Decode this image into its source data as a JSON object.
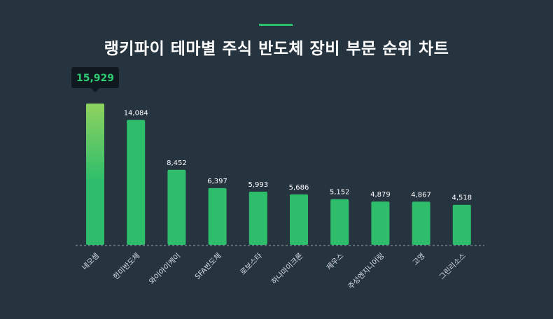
{
  "title": "랭키파이 테마별 주식 반도체 장비 부문 순위 차트",
  "colors": {
    "background": "#263440",
    "accent": "#2ebd6b",
    "bar": "#2ebd6b",
    "bar_top_highlight": "#8fd35f",
    "tooltip_bg": "#101820",
    "tooltip_text": "#2ecc71",
    "baseline": "#9aa5ae"
  },
  "chart_data": {
    "type": "bar",
    "title": "랭키파이 테마별 주식 반도체 장비 부문 순위 차트",
    "categories": [
      "네오셈",
      "한미반도체",
      "와이아이케이",
      "SFA반도체",
      "로보스타",
      "하나마이크론",
      "제우스",
      "주성엔지니어링",
      "고영",
      "그린리소스"
    ],
    "values": [
      15929,
      14084,
      8452,
      6397,
      5993,
      5686,
      5152,
      4879,
      4867,
      4518
    ],
    "value_labels": [
      "15,929",
      "14,084",
      "8,452",
      "6,397",
      "5,993",
      "5,686",
      "5,152",
      "4,879",
      "4,867",
      "4,518"
    ],
    "highlighted_index": 0,
    "ylim": [
      0,
      15929
    ],
    "grid": false,
    "legend": "none",
    "xlabel": "",
    "ylabel": ""
  }
}
